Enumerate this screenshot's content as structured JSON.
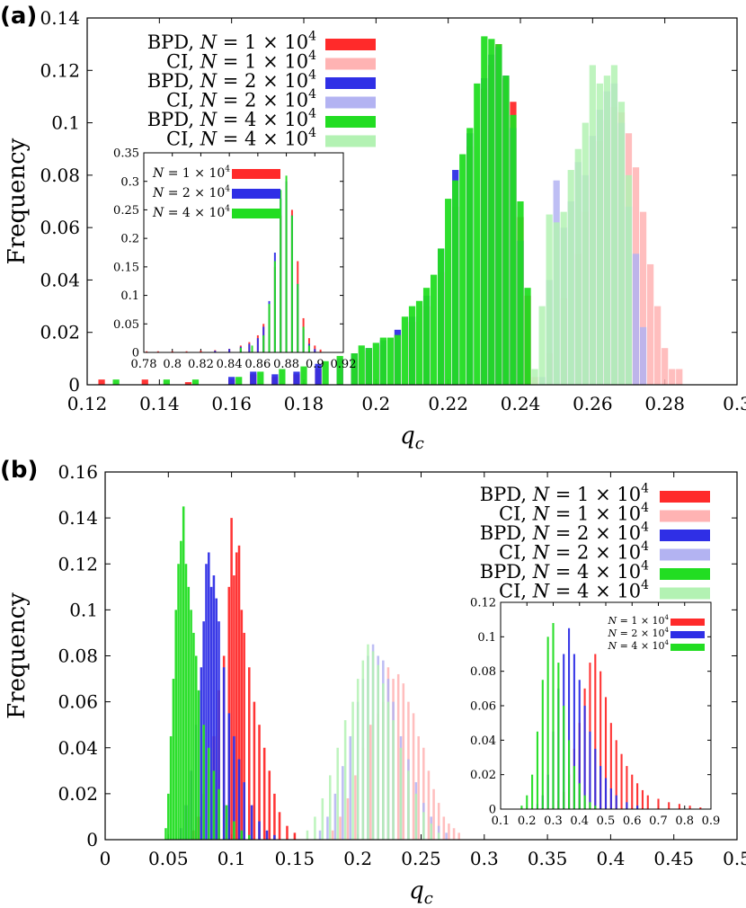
{
  "colors": {
    "bpd_1e4": "#ff2a2a",
    "ci_1e4": "#ffb3b3",
    "bpd_2e4": "#2f2fe6",
    "ci_2e4": "#b3b3f2",
    "bpd_4e4": "#22dd22",
    "ci_4e4": "#b3f2b3"
  },
  "chart_data": [
    {
      "panel": "(a)",
      "type": "bar",
      "xlabel": "q_c",
      "ylabel": "Frequency",
      "xlim": [
        0.12,
        0.3
      ],
      "ylim": [
        0,
        0.14
      ],
      "xticks": [
        "0.12",
        "0.14",
        "0.16",
        "0.18",
        "0.2",
        "0.22",
        "0.24",
        "0.26",
        "0.28",
        "0.3"
      ],
      "yticks": [
        "0",
        "0.02",
        "0.04",
        "0.06",
        "0.08",
        "0.1",
        "0.12",
        "0.14"
      ],
      "legend_position": "top-left",
      "bin_width": 0.002,
      "series": [
        {
          "name": "BPD, N = 1 × 10^4",
          "color_key": "bpd_1e4",
          "x": [
            0.124,
            0.136,
            0.148,
            0.16,
            0.166,
            0.172,
            0.178,
            0.184,
            0.19,
            0.194,
            0.198,
            0.202,
            0.206,
            0.21,
            0.214,
            0.218,
            0.222,
            0.226,
            0.23,
            0.232,
            0.234,
            0.236,
            0.238,
            0.24,
            0.242
          ],
          "values": [
            0.002,
            0.002,
            0.001,
            0.002,
            0.004,
            0.003,
            0.004,
            0.006,
            0.008,
            0.01,
            0.013,
            0.015,
            0.019,
            0.024,
            0.03,
            0.043,
            0.068,
            0.091,
            0.113,
            0.122,
            0.13,
            0.117,
            0.108,
            0.064,
            0.034
          ]
        },
        {
          "name": "CI, N = 1 × 10^4",
          "color_key": "ci_1e4",
          "x": [
            0.244,
            0.248,
            0.252,
            0.256,
            0.258,
            0.26,
            0.262,
            0.264,
            0.266,
            0.268,
            0.27,
            0.272,
            0.274,
            0.276,
            0.278,
            0.28,
            0.282,
            0.284
          ],
          "values": [
            0.003,
            0.012,
            0.033,
            0.05,
            0.066,
            0.082,
            0.093,
            0.101,
            0.106,
            0.104,
            0.096,
            0.083,
            0.066,
            0.046,
            0.03,
            0.014,
            0.006,
            0.006
          ]
        },
        {
          "name": "BPD, N = 2 × 10^4",
          "color_key": "bpd_2e4",
          "x": [
            0.16,
            0.166,
            0.172,
            0.178,
            0.184,
            0.19,
            0.194,
            0.198,
            0.202,
            0.206,
            0.21,
            0.214,
            0.218,
            0.222,
            0.226,
            0.23,
            0.232,
            0.234,
            0.236,
            0.238,
            0.24
          ],
          "values": [
            0.003,
            0.005,
            0.004,
            0.005,
            0.008,
            0.01,
            0.012,
            0.014,
            0.017,
            0.021,
            0.026,
            0.034,
            0.052,
            0.082,
            0.096,
            0.117,
            0.126,
            0.129,
            0.118,
            0.098,
            0.055
          ]
        },
        {
          "name": "CI, N = 2 × 10^4",
          "color_key": "ci_2e4",
          "x": [
            0.246,
            0.248,
            0.25,
            0.252,
            0.254,
            0.256,
            0.258,
            0.26,
            0.262,
            0.264,
            0.266,
            0.268,
            0.27,
            0.272,
            0.274
          ],
          "values": [
            0.003,
            0.04,
            0.078,
            0.06,
            0.07,
            0.085,
            0.08,
            0.095,
            0.105,
            0.112,
            0.115,
            0.1,
            0.068,
            0.05,
            0.022
          ]
        },
        {
          "name": "BPD, N = 4 × 10^4",
          "color_key": "bpd_4e4",
          "x": [
            0.128,
            0.142,
            0.15,
            0.162,
            0.168,
            0.174,
            0.18,
            0.186,
            0.19,
            0.194,
            0.196,
            0.198,
            0.2,
            0.202,
            0.204,
            0.206,
            0.208,
            0.21,
            0.212,
            0.214,
            0.216,
            0.218,
            0.22,
            0.222,
            0.224,
            0.226,
            0.228,
            0.23,
            0.232,
            0.234,
            0.236,
            0.238,
            0.24,
            0.242
          ],
          "values": [
            0.002,
            0.002,
            0.002,
            0.003,
            0.005,
            0.006,
            0.007,
            0.009,
            0.011,
            0.012,
            0.015,
            0.014,
            0.016,
            0.018,
            0.018,
            0.019,
            0.026,
            0.03,
            0.032,
            0.037,
            0.042,
            0.052,
            0.071,
            0.078,
            0.088,
            0.098,
            0.115,
            0.133,
            0.132,
            0.13,
            0.118,
            0.103,
            0.07,
            0.037
          ]
        },
        {
          "name": "CI, N = 4 × 10^4",
          "color_key": "ci_4e4",
          "x": [
            0.244,
            0.246,
            0.248,
            0.25,
            0.252,
            0.254,
            0.256,
            0.258,
            0.26,
            0.262,
            0.264,
            0.266,
            0.268,
            0.27
          ],
          "values": [
            0.006,
            0.03,
            0.065,
            0.062,
            0.066,
            0.082,
            0.09,
            0.1,
            0.122,
            0.115,
            0.118,
            0.122,
            0.108,
            0.08
          ]
        }
      ],
      "inset": {
        "type": "bar",
        "xlim": [
          0.78,
          0.92
        ],
        "ylim": [
          0,
          0.35
        ],
        "xticks": [
          "0.78",
          "0.8",
          "0.82",
          "0.84",
          "0.86",
          "0.88",
          "0.9",
          "0.92"
        ],
        "yticks": [
          "0",
          "0.05",
          "0.1",
          "0.15",
          "0.2",
          "0.25",
          "0.3",
          "0.35"
        ],
        "legend_position": "top-left",
        "series": [
          {
            "name": "N = 1 × 10^4",
            "color_key": "bpd_1e4",
            "x": [
              0.782,
              0.79,
              0.8,
              0.81,
              0.82,
              0.83,
              0.84,
              0.848,
              0.854,
              0.86,
              0.864,
              0.868,
              0.872,
              0.876,
              0.88,
              0.884,
              0.888,
              0.892,
              0.896,
              0.9,
              0.904
            ],
            "values": [
              0.002,
              0.002,
              0.002,
              0.002,
              0.003,
              0.004,
              0.006,
              0.012,
              0.018,
              0.03,
              0.05,
              0.08,
              0.15,
              0.24,
              0.3,
              0.25,
              0.16,
              0.06,
              0.025,
              0.012,
              0.005
            ]
          },
          {
            "name": "N = 2 × 10^4",
            "color_key": "bpd_2e4",
            "x": [
              0.83,
              0.84,
              0.848,
              0.854,
              0.86,
              0.864,
              0.868,
              0.872,
              0.876,
              0.88,
              0.884,
              0.888,
              0.892,
              0.896,
              0.9
            ],
            "values": [
              0.003,
              0.006,
              0.01,
              0.015,
              0.025,
              0.045,
              0.09,
              0.175,
              0.27,
              0.3,
              0.24,
              0.12,
              0.04,
              0.015,
              0.006
            ]
          },
          {
            "name": "N = 4 × 10^4",
            "color_key": "bpd_4e4",
            "x": [
              0.848,
              0.856,
              0.864,
              0.868,
              0.872,
              0.876,
              0.88,
              0.884,
              0.888,
              0.892,
              0.896
            ],
            "values": [
              0.008,
              0.012,
              0.03,
              0.085,
              0.16,
              0.285,
              0.31,
              0.24,
              0.12,
              0.045,
              0.012
            ]
          }
        ]
      }
    },
    {
      "panel": "(b)",
      "type": "bar",
      "xlabel": "q_c",
      "ylabel": "Frequency",
      "xlim": [
        0,
        0.5
      ],
      "ylim": [
        0,
        0.16
      ],
      "xticks": [
        "0",
        "0.05",
        "0.1",
        "0.15",
        "0.2",
        "0.25",
        "0.3",
        "0.35",
        "0.4",
        "0.45",
        "0.5"
      ],
      "yticks": [
        "0",
        "0.02",
        "0.04",
        "0.06",
        "0.08",
        "0.1",
        "0.12",
        "0.14",
        "0.16"
      ],
      "legend_position": "top-right",
      "bin_width": 0.002,
      "series": [
        {
          "name": "BPD, N = 1 × 10^4",
          "color_key": "bpd_1e4",
          "x": [
            0.07,
            0.074,
            0.078,
            0.082,
            0.086,
            0.09,
            0.094,
            0.098,
            0.1,
            0.102,
            0.104,
            0.106,
            0.108,
            0.11,
            0.114,
            0.118,
            0.122,
            0.126,
            0.13,
            0.134,
            0.138,
            0.144,
            0.15
          ],
          "values": [
            0.004,
            0.01,
            0.02,
            0.03,
            0.045,
            0.065,
            0.08,
            0.11,
            0.14,
            0.115,
            0.125,
            0.128,
            0.1,
            0.09,
            0.075,
            0.06,
            0.05,
            0.04,
            0.03,
            0.02,
            0.012,
            0.006,
            0.003
          ]
        },
        {
          "name": "CI, N = 1 × 10^4",
          "color_key": "ci_1e4",
          "x": [
            0.18,
            0.186,
            0.192,
            0.198,
            0.204,
            0.21,
            0.216,
            0.22,
            0.224,
            0.228,
            0.232,
            0.236,
            0.24,
            0.244,
            0.248,
            0.252,
            0.256,
            0.26,
            0.264,
            0.268,
            0.272,
            0.276,
            0.28
          ],
          "values": [
            0.004,
            0.01,
            0.018,
            0.028,
            0.04,
            0.05,
            0.055,
            0.06,
            0.075,
            0.07,
            0.072,
            0.068,
            0.06,
            0.055,
            0.045,
            0.04,
            0.03,
            0.022,
            0.016,
            0.01,
            0.007,
            0.005,
            0.003
          ]
        },
        {
          "name": "BPD, N = 2 × 10^4",
          "color_key": "bpd_2e4",
          "x": [
            0.06,
            0.064,
            0.068,
            0.072,
            0.076,
            0.078,
            0.08,
            0.082,
            0.084,
            0.086,
            0.088,
            0.09,
            0.094,
            0.098,
            0.102,
            0.106,
            0.11,
            0.116,
            0.122,
            0.128,
            0.134
          ],
          "values": [
            0.005,
            0.015,
            0.03,
            0.05,
            0.075,
            0.095,
            0.12,
            0.125,
            0.11,
            0.115,
            0.105,
            0.095,
            0.075,
            0.055,
            0.045,
            0.035,
            0.025,
            0.015,
            0.008,
            0.004,
            0.002
          ]
        },
        {
          "name": "CI, N = 2 × 10^4",
          "color_key": "ci_2e4",
          "x": [
            0.17,
            0.176,
            0.182,
            0.188,
            0.194,
            0.2,
            0.204,
            0.208,
            0.212,
            0.216,
            0.22,
            0.224,
            0.228,
            0.234,
            0.24,
            0.246,
            0.252,
            0.258,
            0.264,
            0.27
          ],
          "values": [
            0.004,
            0.01,
            0.02,
            0.032,
            0.045,
            0.06,
            0.07,
            0.08,
            0.085,
            0.08,
            0.078,
            0.07,
            0.06,
            0.045,
            0.035,
            0.025,
            0.016,
            0.01,
            0.006,
            0.003
          ]
        },
        {
          "name": "BPD, N = 4 × 10^4",
          "color_key": "bpd_4e4",
          "x": [
            0.048,
            0.05,
            0.052,
            0.054,
            0.056,
            0.058,
            0.06,
            0.062,
            0.064,
            0.066,
            0.068,
            0.07,
            0.072,
            0.074,
            0.078,
            0.082,
            0.086,
            0.09,
            0.096,
            0.102,
            0.108,
            0.114
          ],
          "values": [
            0.005,
            0.02,
            0.045,
            0.07,
            0.1,
            0.12,
            0.13,
            0.145,
            0.12,
            0.11,
            0.1,
            0.09,
            0.08,
            0.065,
            0.05,
            0.04,
            0.03,
            0.022,
            0.015,
            0.008,
            0.004,
            0.002
          ]
        },
        {
          "name": "CI, N = 4 × 10^4",
          "color_key": "ci_4e4",
          "x": [
            0.16,
            0.166,
            0.172,
            0.178,
            0.184,
            0.19,
            0.196,
            0.2,
            0.204,
            0.208,
            0.212,
            0.216,
            0.22,
            0.224,
            0.228,
            0.234,
            0.24,
            0.246,
            0.252,
            0.258,
            0.264
          ],
          "values": [
            0.004,
            0.01,
            0.018,
            0.028,
            0.04,
            0.052,
            0.06,
            0.07,
            0.078,
            0.085,
            0.082,
            0.076,
            0.068,
            0.06,
            0.052,
            0.04,
            0.03,
            0.02,
            0.012,
            0.007,
            0.003
          ]
        }
      ],
      "inset": {
        "type": "bar",
        "xlim": [
          0.1,
          0.9
        ],
        "ylim": [
          0,
          0.12
        ],
        "xticks": [
          "0.1",
          "0.2",
          "0.3",
          "0.4",
          "0.5",
          "0.6",
          "0.7",
          "0.8",
          "0.9"
        ],
        "yticks": [
          "0",
          "0.02",
          "0.04",
          "0.06",
          "0.08",
          "0.1",
          "0.12"
        ],
        "legend_position": "top-right",
        "series": [
          {
            "name": "N = 1 × 10^4",
            "color_key": "bpd_1e4",
            "x": [
              0.3,
              0.32,
              0.34,
              0.36,
              0.38,
              0.4,
              0.42,
              0.44,
              0.46,
              0.48,
              0.5,
              0.52,
              0.54,
              0.56,
              0.58,
              0.6,
              0.62,
              0.64,
              0.66,
              0.7,
              0.74,
              0.78,
              0.82,
              0.86
            ],
            "values": [
              0.002,
              0.005,
              0.01,
              0.02,
              0.035,
              0.05,
              0.07,
              0.085,
              0.09,
              0.08,
              0.065,
              0.05,
              0.04,
              0.032,
              0.025,
              0.02,
              0.015,
              0.011,
              0.008,
              0.006,
              0.004,
              0.003,
              0.002,
              0.001
            ]
          },
          {
            "name": "N = 2 × 10^4",
            "color_key": "bpd_2e4",
            "x": [
              0.24,
              0.26,
              0.28,
              0.3,
              0.32,
              0.34,
              0.36,
              0.38,
              0.4,
              0.42,
              0.44,
              0.46,
              0.48,
              0.5,
              0.52,
              0.54,
              0.58,
              0.62
            ],
            "values": [
              0.003,
              0.008,
              0.02,
              0.045,
              0.07,
              0.09,
              0.105,
              0.09,
              0.075,
              0.06,
              0.045,
              0.035,
              0.025,
              0.018,
              0.012,
              0.008,
              0.004,
              0.002
            ]
          },
          {
            "name": "N = 4 × 10^4",
            "color_key": "bpd_4e4",
            "x": [
              0.18,
              0.2,
              0.22,
              0.24,
              0.26,
              0.28,
              0.3,
              0.32,
              0.34,
              0.36,
              0.38,
              0.4,
              0.42,
              0.44,
              0.46
            ],
            "values": [
              0.002,
              0.008,
              0.02,
              0.045,
              0.075,
              0.1,
              0.108,
              0.085,
              0.06,
              0.04,
              0.025,
              0.015,
              0.008,
              0.004,
              0.002
            ]
          }
        ]
      }
    }
  ]
}
